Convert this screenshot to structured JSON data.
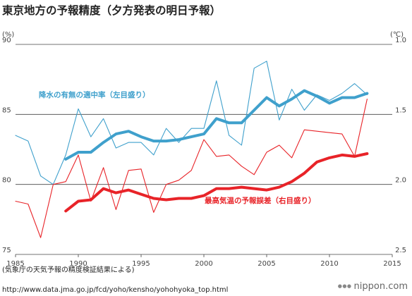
{
  "chart_data": {
    "type": "line",
    "title": "東京地方の予報精度（夕方発表の明日予報）",
    "y_left": {
      "unit": "(%)",
      "min": 75,
      "max": 90,
      "ticks": [
        "75",
        "80",
        "85",
        "90"
      ]
    },
    "y_right": {
      "unit": "(℃)",
      "min": 1.0,
      "max": 2.5,
      "ticks": [
        "1.0",
        "1.5",
        "2.0",
        "2.5"
      ],
      "inverted": true
    },
    "x": {
      "min": 1985,
      "max": 2015,
      "ticks": [
        "1985",
        "1990",
        "1995",
        "2000",
        "2005",
        "2010",
        "2015"
      ]
    },
    "grid": true,
    "series": [
      {
        "name": "降水の有無の適中率（左目盛り）",
        "axis": "left",
        "kind": "annual",
        "color": "#3fa0cc",
        "x": [
          1985,
          1986,
          1987,
          1988,
          1989,
          1990,
          1991,
          1992,
          1993,
          1994,
          1995,
          1996,
          1997,
          1998,
          1999,
          2000,
          2001,
          2002,
          2003,
          2004,
          2005,
          2006,
          2007,
          2008,
          2009,
          2010,
          2011,
          2012,
          2013
        ],
        "values": [
          83.5,
          83.1,
          80.6,
          80.0,
          82.1,
          85.4,
          83.4,
          84.7,
          82.6,
          83.0,
          83.0,
          82.1,
          84.0,
          83.0,
          84.0,
          84.0,
          87.4,
          83.5,
          82.8,
          88.3,
          88.8,
          84.6,
          86.8,
          85.3,
          86.4,
          86.0,
          86.5,
          87.2,
          86.4
        ]
      },
      {
        "name": "",
        "axis": "left",
        "kind": "moving-average",
        "color": "#3fa0cc",
        "x": [
          1989,
          1990,
          1991,
          1992,
          1993,
          1994,
          1995,
          1996,
          1997,
          1998,
          1999,
          2000,
          2001,
          2002,
          2003,
          2004,
          2005,
          2006,
          2007,
          2008,
          2009,
          2010,
          2011,
          2012,
          2013
        ],
        "values": [
          81.8,
          82.3,
          82.3,
          83.0,
          83.6,
          83.8,
          83.4,
          83.1,
          83.1,
          83.2,
          83.4,
          83.6,
          84.7,
          84.4,
          84.4,
          85.3,
          86.2,
          85.6,
          86.1,
          86.7,
          86.3,
          85.8,
          86.2,
          86.2,
          86.5
        ]
      },
      {
        "name": "最高気温の予報誤差（右目盛り）",
        "axis": "right",
        "kind": "annual",
        "color": "#e82328",
        "x": [
          1985,
          1986,
          1987,
          1988,
          1989,
          1990,
          1991,
          1992,
          1993,
          1994,
          1995,
          1996,
          1997,
          1998,
          1999,
          2000,
          2001,
          2002,
          2003,
          2004,
          2005,
          2006,
          2007,
          2008,
          2009,
          2010,
          2011,
          2012,
          2013
        ],
        "values": [
          2.12,
          2.14,
          2.38,
          2.0,
          1.98,
          1.79,
          2.12,
          1.88,
          2.18,
          1.9,
          1.89,
          2.2,
          2.0,
          1.97,
          1.9,
          1.68,
          1.8,
          1.79,
          1.87,
          1.93,
          1.77,
          1.72,
          1.81,
          1.61,
          1.62,
          1.63,
          1.64,
          1.8,
          1.39
        ]
      },
      {
        "name": "",
        "axis": "right",
        "kind": "moving-average",
        "color": "#e82328",
        "x": [
          1989,
          1990,
          1991,
          1992,
          1993,
          1994,
          1995,
          1996,
          1997,
          1998,
          1999,
          2000,
          2001,
          2002,
          2003,
          2004,
          2005,
          2006,
          2007,
          2008,
          2009,
          2010,
          2011,
          2012,
          2013
        ],
        "values": [
          2.19,
          2.12,
          2.11,
          2.03,
          2.06,
          2.04,
          2.07,
          2.1,
          2.11,
          2.1,
          2.1,
          2.08,
          2.03,
          2.03,
          2.02,
          2.03,
          2.04,
          2.02,
          1.98,
          1.92,
          1.84,
          1.81,
          1.79,
          1.8,
          1.78
        ]
      }
    ]
  },
  "source_note": "(気象庁の天気予報の精度検証結果による)",
  "source_url": "http://www.data.jma.go.jp/fcd/yoho/kensho/yohohyoka_top.html",
  "brand": "nippon.com"
}
